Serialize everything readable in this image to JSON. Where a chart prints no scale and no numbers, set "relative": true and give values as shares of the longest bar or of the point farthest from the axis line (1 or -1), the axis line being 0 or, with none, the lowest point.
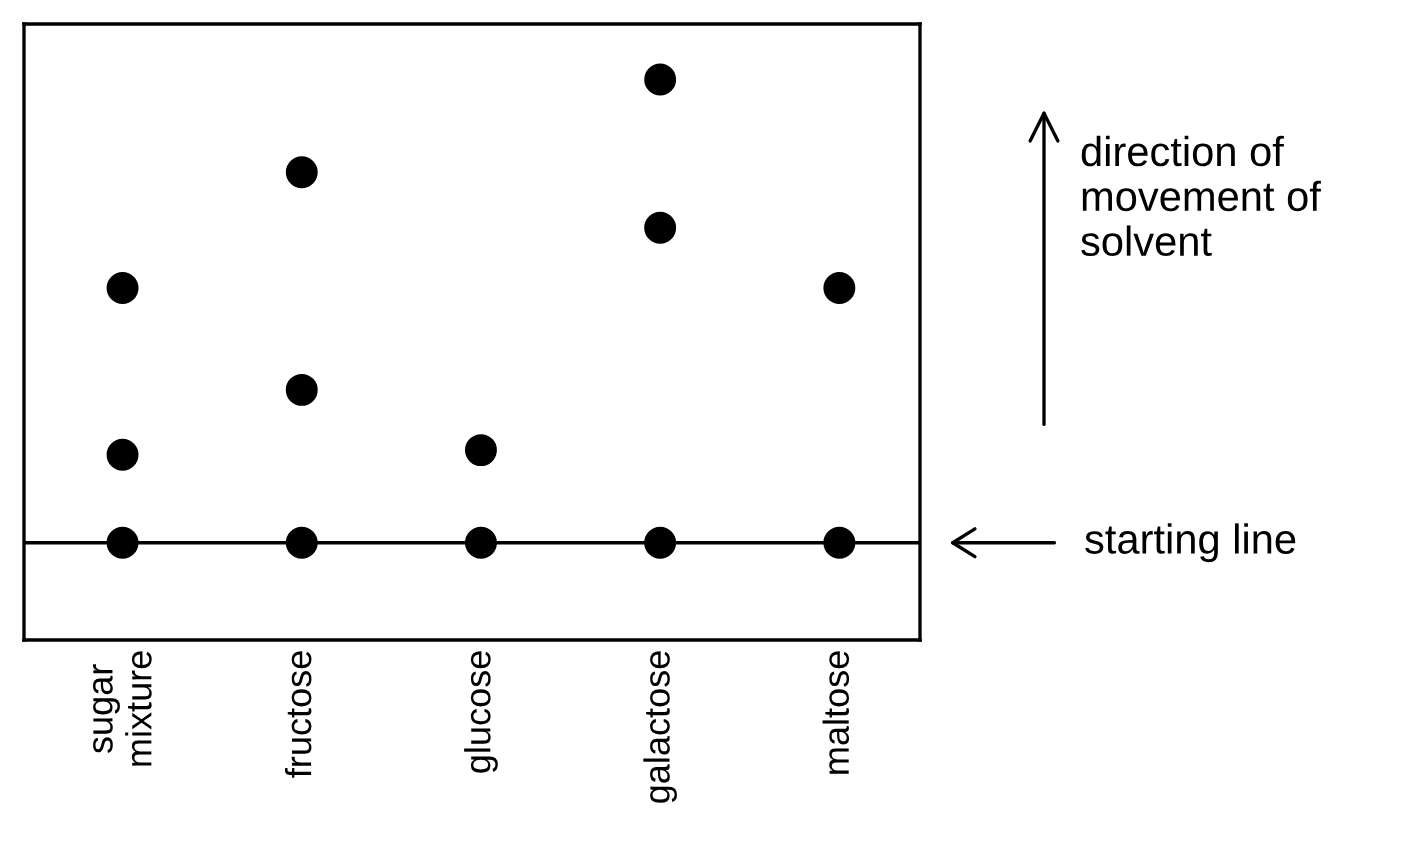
{
  "chart_data": {
    "type": "scatter",
    "relative": true,
    "categories": [
      "sugar mixture",
      "fructose",
      "glucose",
      "galactose",
      "maltose"
    ],
    "series": [
      {
        "color": "#000000",
        "values": [
          0,
          0,
          0,
          0,
          0
        ]
      },
      {
        "color": "#000000",
        "values": [
          0.19,
          0.33,
          0.2,
          0.68,
          0.55
        ]
      },
      {
        "color": "#000000",
        "values": [
          0.55,
          0.8,
          null,
          1,
          null
        ]
      }
    ],
    "marker": "circle",
    "grid": false,
    "tick_labels": "x",
    "ref_lines": [
      {
        "axis": "y",
        "value": 0,
        "label": "starting line",
        "color": "#000000"
      }
    ],
    "annotations": [
      "direction of movement of solvent"
    ]
  }
}
